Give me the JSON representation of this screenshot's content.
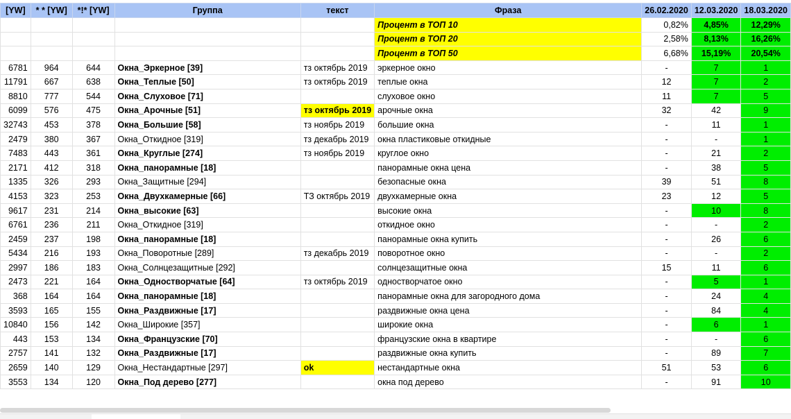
{
  "headers": [
    "[YW]",
    "* * [YW]",
    "*!* [YW]",
    "Группа",
    "текст",
    "Фраза",
    "26.02.2020",
    "12.03.2020",
    "18.03.2020"
  ],
  "summary": [
    {
      "label": "Процент в ТОП 10",
      "d1": "0,82%",
      "d2": "4,85%",
      "d3": "12,29%"
    },
    {
      "label": "Процент в ТОП 20",
      "d1": "2,58%",
      "d2": "8,13%",
      "d3": "16,26%"
    },
    {
      "label": "Процент в ТОП 50",
      "d1": "6,68%",
      "d2": "15,19%",
      "d3": "20,54%"
    }
  ],
  "rows": [
    {
      "yw": "6781",
      "yw2": "964",
      "yw3": "644",
      "group": "Окна_Эркерное [39]",
      "bold": true,
      "text": "тз октябрь 2019",
      "phrase": "эркерное окно",
      "d1": "-",
      "d2": "7",
      "d2g": true,
      "d3": "1"
    },
    {
      "yw": "11791",
      "yw2": "667",
      "yw3": "638",
      "group": "Окна_Теплые [50]",
      "bold": true,
      "text": "тз октябрь 2019",
      "phrase": "теплые окна",
      "d1": "12",
      "d2": "7",
      "d2g": true,
      "d3": "2"
    },
    {
      "yw": "8810",
      "yw2": "777",
      "yw3": "544",
      "group": "Окна_Слуховое [71]",
      "bold": true,
      "text": "",
      "phrase": "слуховое окно",
      "d1": "11",
      "d2": "7",
      "d2g": true,
      "d3": "5"
    },
    {
      "yw": "6099",
      "yw2": "576",
      "yw3": "475",
      "group": "Окна_Арочные [51]",
      "bold": true,
      "text": "тз октябрь 2019",
      "texthl": true,
      "phrase": "арочные окна",
      "d1": "32",
      "d2": "42",
      "d3": "9"
    },
    {
      "yw": "32743",
      "yw2": "453",
      "yw3": "378",
      "group": "Окна_Большие [58]",
      "bold": true,
      "text": "тз ноябрь 2019",
      "phrase": "большие окна",
      "d1": "-",
      "d2": "11",
      "d3": "1"
    },
    {
      "yw": "2479",
      "yw2": "380",
      "yw3": "367",
      "group": "Окна_Откидное [319]",
      "bold": false,
      "text": "тз декабрь 2019",
      "phrase": "окна пластиковые откидные",
      "d1": "-",
      "d2": "-",
      "d3": "1"
    },
    {
      "yw": "7483",
      "yw2": "443",
      "yw3": "361",
      "group": "Окна_Круглые [274]",
      "bold": true,
      "text": "тз ноябрь 2019",
      "phrase": "круглое окно",
      "d1": "-",
      "d2": "21",
      "d3": "2"
    },
    {
      "yw": "2171",
      "yw2": "412",
      "yw3": "318",
      "group": "Окна_панорамные [18]",
      "bold": true,
      "text": "",
      "phrase": "панорамные окна цена",
      "d1": "-",
      "d2": "38",
      "d3": "5"
    },
    {
      "yw": "1335",
      "yw2": "326",
      "yw3": "293",
      "group": "Окна_Защитные [294]",
      "bold": false,
      "text": "",
      "phrase": "безопасные окна",
      "d1": "39",
      "d2": "51",
      "d3": "8"
    },
    {
      "yw": "4153",
      "yw2": "323",
      "yw3": "253",
      "group": "Окна_Двухкамерные [66]",
      "bold": true,
      "text": "ТЗ октябрь 2019",
      "phrase": "двухкамерные окна",
      "d1": "23",
      "d2": "12",
      "d3": "5"
    },
    {
      "yw": "9617",
      "yw2": "231",
      "yw3": "214",
      "group": "Окна_высокие [63]",
      "bold": true,
      "text": "",
      "phrase": "высокие окна",
      "d1": "-",
      "d2": "10",
      "d2g": true,
      "d3": "8"
    },
    {
      "yw": "6761",
      "yw2": "236",
      "yw3": "211",
      "group": "Окна_Откидное [319]",
      "bold": false,
      "text": "",
      "phrase": "откидное окно",
      "d1": "-",
      "d2": "-",
      "d3": "2"
    },
    {
      "yw": "2459",
      "yw2": "237",
      "yw3": "198",
      "group": "Окна_панорамные [18]",
      "bold": true,
      "text": "",
      "phrase": "панорамные окна купить",
      "d1": "-",
      "d2": "26",
      "d3": "6"
    },
    {
      "yw": "5434",
      "yw2": "216",
      "yw3": "193",
      "group": "Окна_Поворотные [289]",
      "bold": false,
      "text": "тз декабрь 2019",
      "phrase": "поворотное окно",
      "d1": "-",
      "d2": "-",
      "d3": "2"
    },
    {
      "yw": "2997",
      "yw2": "186",
      "yw3": "183",
      "group": "Окна_Солнцезащитные [292]",
      "bold": false,
      "text": "",
      "phrase": "солнцезащитные окна",
      "d1": "15",
      "d2": "11",
      "d3": "6"
    },
    {
      "yw": "2473",
      "yw2": "221",
      "yw3": "164",
      "group": "Окна_Одностворчатые [64]",
      "bold": true,
      "text": "тз октябрь 2019",
      "phrase": "одностворчатое окно",
      "d1": "-",
      "d2": "5",
      "d2g": true,
      "d3": "1"
    },
    {
      "yw": "368",
      "yw2": "164",
      "yw3": "164",
      "group": "Окна_панорамные [18]",
      "bold": true,
      "text": "",
      "phrase": "панорамные окна для загородного дома",
      "d1": "-",
      "d2": "24",
      "d3": "4"
    },
    {
      "yw": "3593",
      "yw2": "165",
      "yw3": "155",
      "group": "Окна_Раздвижные [17]",
      "bold": true,
      "text": "",
      "phrase": "раздвижные окна цена",
      "d1": "-",
      "d2": "84",
      "d3": "4"
    },
    {
      "yw": "10840",
      "yw2": "156",
      "yw3": "142",
      "group": "Окна_Широкие [357]",
      "bold": false,
      "text": "",
      "phrase": "широкие окна",
      "d1": "-",
      "d2": "6",
      "d2g": true,
      "d3": "1"
    },
    {
      "yw": "443",
      "yw2": "153",
      "yw3": "134",
      "group": "Окна_Французские [70]",
      "bold": true,
      "text": "",
      "phrase": "французские окна в квартире",
      "d1": "-",
      "d2": "-",
      "d3": "6"
    },
    {
      "yw": "2757",
      "yw2": "141",
      "yw3": "132",
      "group": "Окна_Раздвижные [17]",
      "bold": true,
      "text": "",
      "phrase": "раздвижные окна купить",
      "d1": "-",
      "d2": "89",
      "d3": "7"
    },
    {
      "yw": "2659",
      "yw2": "140",
      "yw3": "129",
      "group": "Окна_Нестандартные [297]",
      "bold": false,
      "text": "ok",
      "texthl": true,
      "phrase": "нестандартные окна",
      "d1": "51",
      "d2": "53",
      "d3": "6"
    },
    {
      "yw": "3553",
      "yw2": "134",
      "yw3": "120",
      "group": "Окна_Под дерево [277]",
      "bold": true,
      "text": "",
      "phrase": "окна под дерево",
      "d1": "-",
      "d2": "91",
      "d3": "10"
    }
  ],
  "colors": {
    "header": "#a9c4f5",
    "highlight": "#ffff00",
    "top_rank": "#00ee00"
  }
}
